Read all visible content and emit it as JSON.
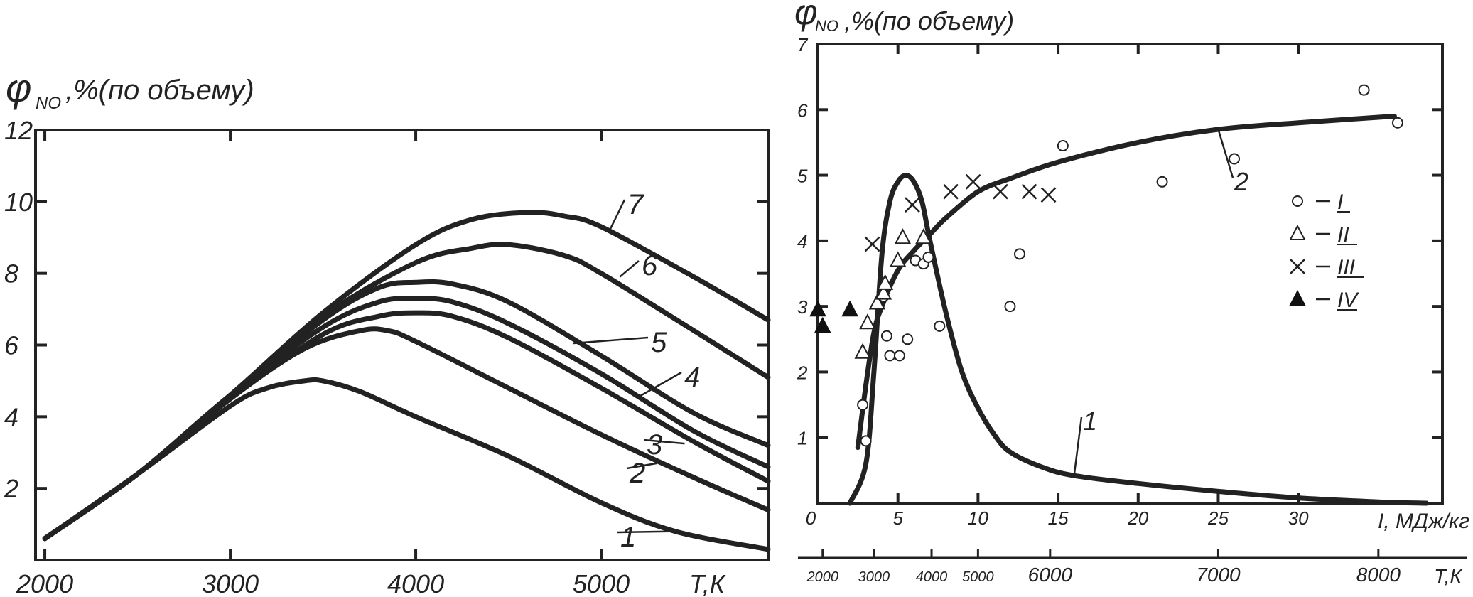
{
  "chart_data": [
    {
      "type": "line",
      "ylabel": "φ",
      "ylabel_sub": "NO",
      "ylabel_rest": ",%(по объему)",
      "xlabel": "Т,К",
      "xlim": [
        1950,
        5900
      ],
      "ylim": [
        0,
        12
      ],
      "x_ticks": [
        2000,
        3000,
        4000,
        5000
      ],
      "y_ticks": [
        2,
        4,
        6,
        8,
        10,
        12
      ],
      "series": [
        {
          "name": "1",
          "x": [
            2000,
            2500,
            3000,
            3200,
            3400,
            3500,
            3700,
            4000,
            4500,
            5000,
            5400,
            5900
          ],
          "y": [
            0.6,
            2.4,
            4.3,
            4.8,
            5.0,
            5.0,
            4.7,
            4.0,
            2.9,
            1.6,
            0.8,
            0.3
          ]
        },
        {
          "name": "2",
          "x": [
            2000,
            2500,
            3000,
            3400,
            3700,
            3850,
            4000,
            4500,
            5000,
            5500,
            5900
          ],
          "y": [
            0.6,
            2.4,
            4.5,
            5.9,
            6.4,
            6.4,
            6.1,
            4.8,
            3.5,
            2.3,
            1.4
          ]
        },
        {
          "name": "3",
          "x": [
            2000,
            2500,
            3000,
            3500,
            3800,
            4000,
            4200,
            4500,
            5000,
            5500,
            5900
          ],
          "y": [
            0.6,
            2.4,
            4.5,
            6.3,
            6.8,
            6.9,
            6.8,
            6.2,
            4.8,
            3.3,
            2.2
          ]
        },
        {
          "name": "4",
          "x": [
            2000,
            2500,
            3000,
            3500,
            3800,
            4000,
            4200,
            4500,
            5000,
            5500,
            5900
          ],
          "y": [
            0.6,
            2.4,
            4.6,
            6.5,
            7.2,
            7.3,
            7.2,
            6.6,
            5.2,
            3.6,
            2.6
          ]
        },
        {
          "name": "5",
          "x": [
            2000,
            2500,
            3000,
            3500,
            3800,
            4000,
            4200,
            4500,
            5000,
            5500,
            5900
          ],
          "y": [
            0.6,
            2.4,
            4.6,
            6.7,
            7.6,
            7.75,
            7.7,
            7.2,
            5.7,
            4.1,
            3.2
          ]
        },
        {
          "name": "6",
          "x": [
            2000,
            2500,
            3000,
            3500,
            4000,
            4300,
            4500,
            4800,
            5000,
            5500,
            5900
          ],
          "y": [
            0.6,
            2.4,
            4.6,
            6.8,
            8.3,
            8.7,
            8.8,
            8.5,
            8.0,
            6.4,
            5.1
          ]
        },
        {
          "name": "7",
          "x": [
            2000,
            2500,
            3000,
            3500,
            4000,
            4300,
            4600,
            4800,
            5000,
            5500,
            5900
          ],
          "y": [
            0.6,
            2.4,
            4.6,
            6.9,
            8.8,
            9.5,
            9.7,
            9.6,
            9.3,
            7.9,
            6.7
          ]
        }
      ]
    },
    {
      "type": "scatter",
      "ylabel": "φ",
      "ylabel_sub": "NO",
      "ylabel_rest": ",%(по объему)",
      "xlabel": "I, МДж/кг",
      "xlim": [
        0,
        39
      ],
      "ylim": [
        0,
        7
      ],
      "x_ticks": [
        0,
        5,
        10,
        15,
        20,
        25,
        30
      ],
      "y_ticks": [
        1,
        2,
        3,
        4,
        5,
        6,
        7
      ],
      "temperature_axis": {
        "label": "Т,К",
        "ticks": [
          {
            "label": "2000",
            "I": 0.3
          },
          {
            "label": "3000",
            "I": 3.5
          },
          {
            "label": "4000",
            "I": 7.1
          },
          {
            "label": "5000",
            "I": 10.0
          },
          {
            "label": "6000",
            "I": 14.5
          },
          {
            "label": "7000",
            "I": 25.0
          },
          {
            "label": "8000",
            "I": 35.0
          }
        ]
      },
      "lines": [
        {
          "name": "1",
          "x": [
            2.0,
            3.0,
            3.5,
            4.0,
            4.5,
            5.0,
            5.5,
            6.0,
            6.5,
            7.0,
            8.0,
            9.0,
            10.0,
            11.0,
            12.0,
            14.0,
            16.0,
            20.0,
            25.0,
            30.0,
            35.0,
            38.0
          ],
          "y": [
            0.0,
            0.6,
            2.0,
            3.8,
            4.6,
            4.9,
            5.0,
            4.9,
            4.6,
            4.0,
            2.9,
            2.0,
            1.45,
            1.05,
            0.78,
            0.55,
            0.42,
            0.3,
            0.18,
            0.08,
            0.02,
            0.0
          ]
        },
        {
          "name": "2",
          "x": [
            2.5,
            3.0,
            3.5,
            4.0,
            5.0,
            6.0,
            7.0,
            8.0,
            10.0,
            12.0,
            15.0,
            20.0,
            25.0,
            30.0,
            36.0
          ],
          "y": [
            0.85,
            1.8,
            2.6,
            3.0,
            3.55,
            3.85,
            4.1,
            4.35,
            4.75,
            4.95,
            5.2,
            5.5,
            5.7,
            5.8,
            5.9
          ]
        }
      ],
      "legend": [
        {
          "marker": "circle",
          "label": "I"
        },
        {
          "marker": "triangle-open",
          "label": "II"
        },
        {
          "marker": "cross",
          "label": "III"
        },
        {
          "marker": "triangle-filled",
          "label": "IV"
        }
      ],
      "series": [
        {
          "marker": "circle",
          "x": [
            2.8,
            3.0,
            4.1,
            4.3,
            4.5,
            5.1,
            5.6,
            6.1,
            6.6,
            6.9,
            7.6,
            12.0,
            12.6,
            15.3,
            21.5,
            26.0,
            34.1,
            36.2
          ],
          "y": [
            1.5,
            0.95,
            3.15,
            2.55,
            2.25,
            2.25,
            2.5,
            3.7,
            3.65,
            3.75,
            2.7,
            3.0,
            3.8,
            5.45,
            4.9,
            5.25,
            6.3,
            5.8
          ]
        },
        {
          "marker": "triangle-open",
          "x": [
            2.8,
            3.1,
            3.7,
            4.1,
            4.2,
            5.0,
            5.3,
            6.6
          ],
          "y": [
            2.3,
            2.75,
            3.05,
            3.2,
            3.35,
            3.7,
            4.05,
            4.05
          ]
        },
        {
          "marker": "cross",
          "x": [
            3.4,
            5.9,
            8.3,
            9.7,
            11.4,
            13.2,
            14.4
          ],
          "y": [
            3.95,
            4.55,
            4.75,
            4.9,
            4.75,
            4.75,
            4.7
          ]
        },
        {
          "marker": "triangle-filled",
          "x": [
            0.0,
            0.3,
            2.0
          ],
          "y": [
            2.95,
            2.7,
            2.95
          ]
        }
      ]
    }
  ]
}
